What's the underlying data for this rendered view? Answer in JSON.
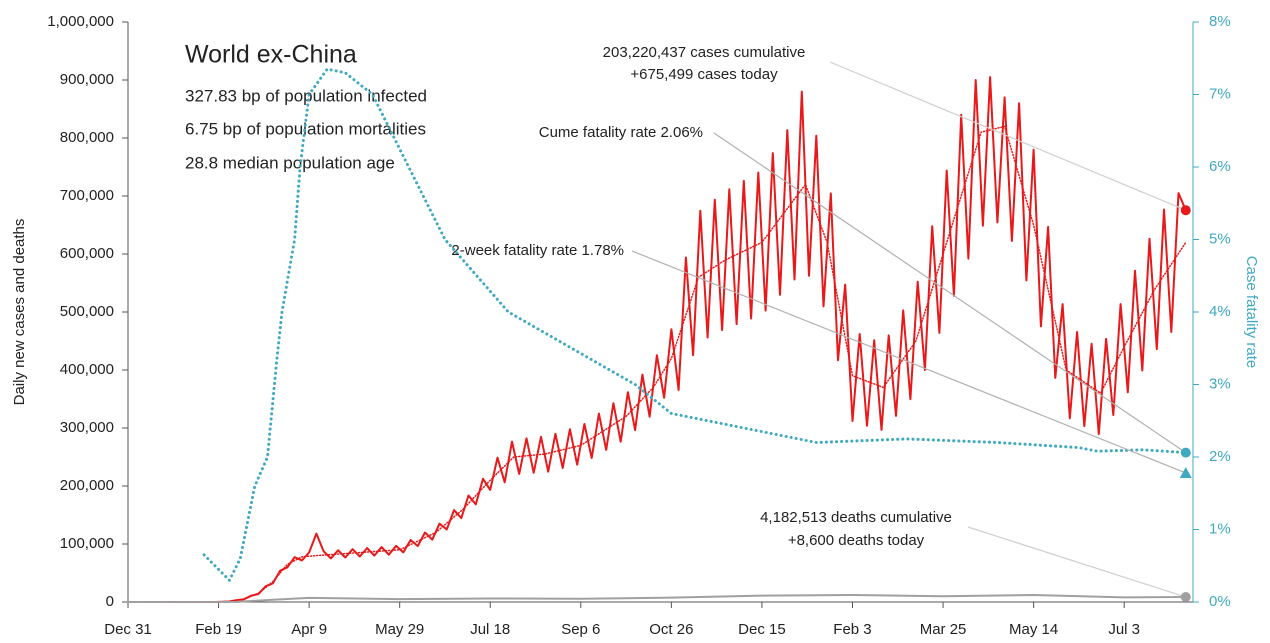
{
  "chart_data": {
    "type": "line",
    "info": {
      "title": "World ex-China",
      "lines": [
        "327.83 bp of population infected",
        "6.75 bp of population mortalities",
        "28.8 median population age"
      ]
    },
    "y_label": "Daily new cases and deaths",
    "y2_label": "Case fatality rate",
    "xlim": [
      0,
      588
    ],
    "xticks": [
      {
        "value": 0,
        "label": "Dec 31"
      },
      {
        "value": 50,
        "label": "Feb 19"
      },
      {
        "value": 100,
        "label": "Apr 9"
      },
      {
        "value": 150,
        "label": "May 29"
      },
      {
        "value": 200,
        "label": "Jul 18"
      },
      {
        "value": 250,
        "label": "Sep 6"
      },
      {
        "value": 300,
        "label": "Oct 26"
      },
      {
        "value": 350,
        "label": "Dec 15"
      },
      {
        "value": 400,
        "label": "Feb 3"
      },
      {
        "value": 450,
        "label": "Mar 25"
      },
      {
        "value": 500,
        "label": "May 14"
      },
      {
        "value": 550,
        "label": "Jul 3"
      }
    ],
    "ylim": [
      0,
      1000000
    ],
    "yticks": [
      0,
      {
        "value": 100000,
        "label": "100,000"
      },
      {
        "value": 200000,
        "label": "200,000"
      },
      {
        "value": 300000,
        "label": "300,000"
      },
      {
        "value": 400000,
        "label": "400,000"
      },
      {
        "value": 500000,
        "label": "500,000"
      },
      {
        "value": 600000,
        "label": "600,000"
      },
      {
        "value": 700000,
        "label": "700,000"
      },
      {
        "value": 800000,
        "label": "800,000"
      },
      {
        "value": 900000,
        "label": "900,000"
      },
      {
        "value": 1000000,
        "label": "1,000,000"
      }
    ],
    "y2lim": [
      0,
      8
    ],
    "y2ticks": [
      {
        "value": 0,
        "label": "0%"
      },
      {
        "value": 1,
        "label": "1%"
      },
      {
        "value": 2,
        "label": "2%"
      },
      {
        "value": 3,
        "label": "3%"
      },
      {
        "value": 4,
        "label": "4%"
      },
      {
        "value": 5,
        "label": "5%"
      },
      {
        "value": 6,
        "label": "6%"
      },
      {
        "value": 7,
        "label": "7%"
      },
      {
        "value": 8,
        "label": "8%"
      }
    ],
    "axis_color": "#3fa9c0",
    "series": [
      {
        "color": "#e8191a",
        "style": "solid",
        "axis": "y",
        "x": [
          0,
          48,
          52,
          56,
          60,
          64,
          68,
          72,
          76,
          80,
          84,
          88,
          92,
          96,
          100,
          104,
          108,
          112,
          116,
          120,
          124,
          128,
          132,
          136,
          140,
          144,
          148,
          152,
          156,
          160,
          164,
          168,
          172,
          176,
          180,
          184,
          188,
          192,
          196,
          200,
          204,
          208,
          212,
          216,
          220,
          224,
          228,
          232,
          236,
          240,
          244,
          248,
          252,
          256,
          260,
          264,
          268,
          272,
          276,
          280,
          284,
          288,
          292,
          296,
          300,
          304,
          308,
          312,
          316,
          320,
          324,
          328,
          332,
          336,
          340,
          344,
          348,
          352,
          356,
          360,
          364,
          368,
          372,
          376,
          380,
          384,
          388,
          392,
          396,
          400,
          404,
          408,
          412,
          416,
          420,
          424,
          428,
          432,
          436,
          440,
          444,
          448,
          452,
          456,
          460,
          464,
          468,
          472,
          476,
          480,
          484,
          488,
          492,
          496,
          500,
          504,
          508,
          512,
          516,
          520,
          524,
          528,
          532,
          536,
          540,
          544,
          548,
          552,
          556,
          560,
          564,
          568,
          572,
          576,
          580,
          584
        ],
        "values": [
          0,
          0,
          500,
          900,
          3300,
          4600,
          10800,
          13800,
          27000,
          32200,
          54000,
          59800,
          77200,
          71800,
          85300,
          118000,
          87400,
          75200,
          89200,
          76800,
          91000,
          78400,
          93000,
          80000,
          94800,
          81600,
          96800,
          85600,
          106900,
          96600,
          119900,
          107600,
          135000,
          125100,
          158400,
          144700,
          183600,
          168400,
          212400,
          193200,
          249000,
          206400,
          276500,
          220800,
          282200,
          222800,
          284900,
          224700,
          290000,
          231000,
          297900,
          236700,
          306900,
          248200,
          324800,
          262200,
          342700,
          276300,
          361800,
          296300,
          392000,
          319400,
          425600,
          352000,
          470400,
          365600,
          594000,
          425600,
          674400,
          456000,
          693600,
          468800,
          711600,
          479200,
          726000,
          488800,
          740400,
          502400,
          774000,
          529600,
          813600,
          556000,
          880000,
          562400,
          804000,
          509600,
          704400,
          416800,
          547200,
          312000,
          462000,
          304000,
          451200,
          296800,
          459600,
          320800,
          502800,
          349600,
          552000,
          400000,
          648000,
          464000,
          744000,
          528000,
          840000,
          592000,
          900000,
          648800,
          905000,
          654400,
          870000,
          622400,
          860000,
          554400,
          780000,
          475200,
          646800,
          386400,
          513600,
          316800,
          465600,
          303200,
          445200,
          289600,
          453600,
          322400,
          513600,
          361600,
          571200,
          399200,
          626400,
          436000,
          676800,
          465600,
          705000,
          675499
        ]
      },
      {
        "color": "#e8191a",
        "style": "dotted",
        "axis": "y",
        "x": [
          0,
          48,
          56,
          64,
          72,
          80,
          88,
          96,
          104,
          150,
          170,
          185,
          200,
          213,
          230,
          250,
          275,
          290,
          300,
          315,
          330,
          350,
          374,
          386,
          400,
          417,
          435,
          450,
          471,
          484,
          500,
          518,
          537,
          550,
          567,
          584
        ],
        "values": [
          0,
          0,
          1000,
          5000,
          15000,
          35000,
          65000,
          78000,
          80000,
          90000,
          120000,
          160000,
          210000,
          250000,
          255000,
          270000,
          320000,
          370000,
          420000,
          560000,
          590000,
          620000,
          720000,
          620000,
          390000,
          370000,
          450000,
          600000,
          810000,
          820000,
          650000,
          400000,
          360000,
          440000,
          540000,
          620000
        ]
      },
      {
        "color": "#a0a0a0",
        "style": "solid",
        "axis": "y",
        "x": [
          0,
          60,
          80,
          100,
          150,
          200,
          250,
          300,
          350,
          400,
          450,
          500,
          550,
          584
        ],
        "values": [
          0,
          100,
          4000,
          7000,
          5000,
          6000,
          5500,
          7500,
          11000,
          12000,
          10000,
          12000,
          8000,
          8600
        ]
      },
      {
        "color": "#3fa9c0",
        "style": "dotted",
        "axis": "y2",
        "x": [
          42,
          50,
          56,
          62,
          70,
          77,
          82,
          85,
          92,
          95,
          100,
          110,
          120,
          135,
          155,
          175,
          210,
          245,
          280,
          300,
          340,
          380,
          430,
          480,
          525,
          535,
          560,
          584
        ],
        "values": [
          0.65,
          0.45,
          0.3,
          0.6,
          1.6,
          2.0,
          3.3,
          4.0,
          5.0,
          6.0,
          7.0,
          7.35,
          7.3,
          7.0,
          6.0,
          5.0,
          4.0,
          3.5,
          3.0,
          2.6,
          2.4,
          2.2,
          2.25,
          2.2,
          2.13,
          2.08,
          2.1,
          2.06
        ]
      }
    ],
    "two_week_cfr": 1.78,
    "annotations": {
      "cases": [
        "203,220,437 cases cumulative",
        "+675,499 cases today"
      ],
      "cume_cfr": "Cume fatality rate 2.06%",
      "two_week_cfr": "2-week fatality rate 1.78%",
      "deaths": [
        "4,182,513 deaths cumulative",
        "+8,600 deaths today"
      ]
    }
  }
}
